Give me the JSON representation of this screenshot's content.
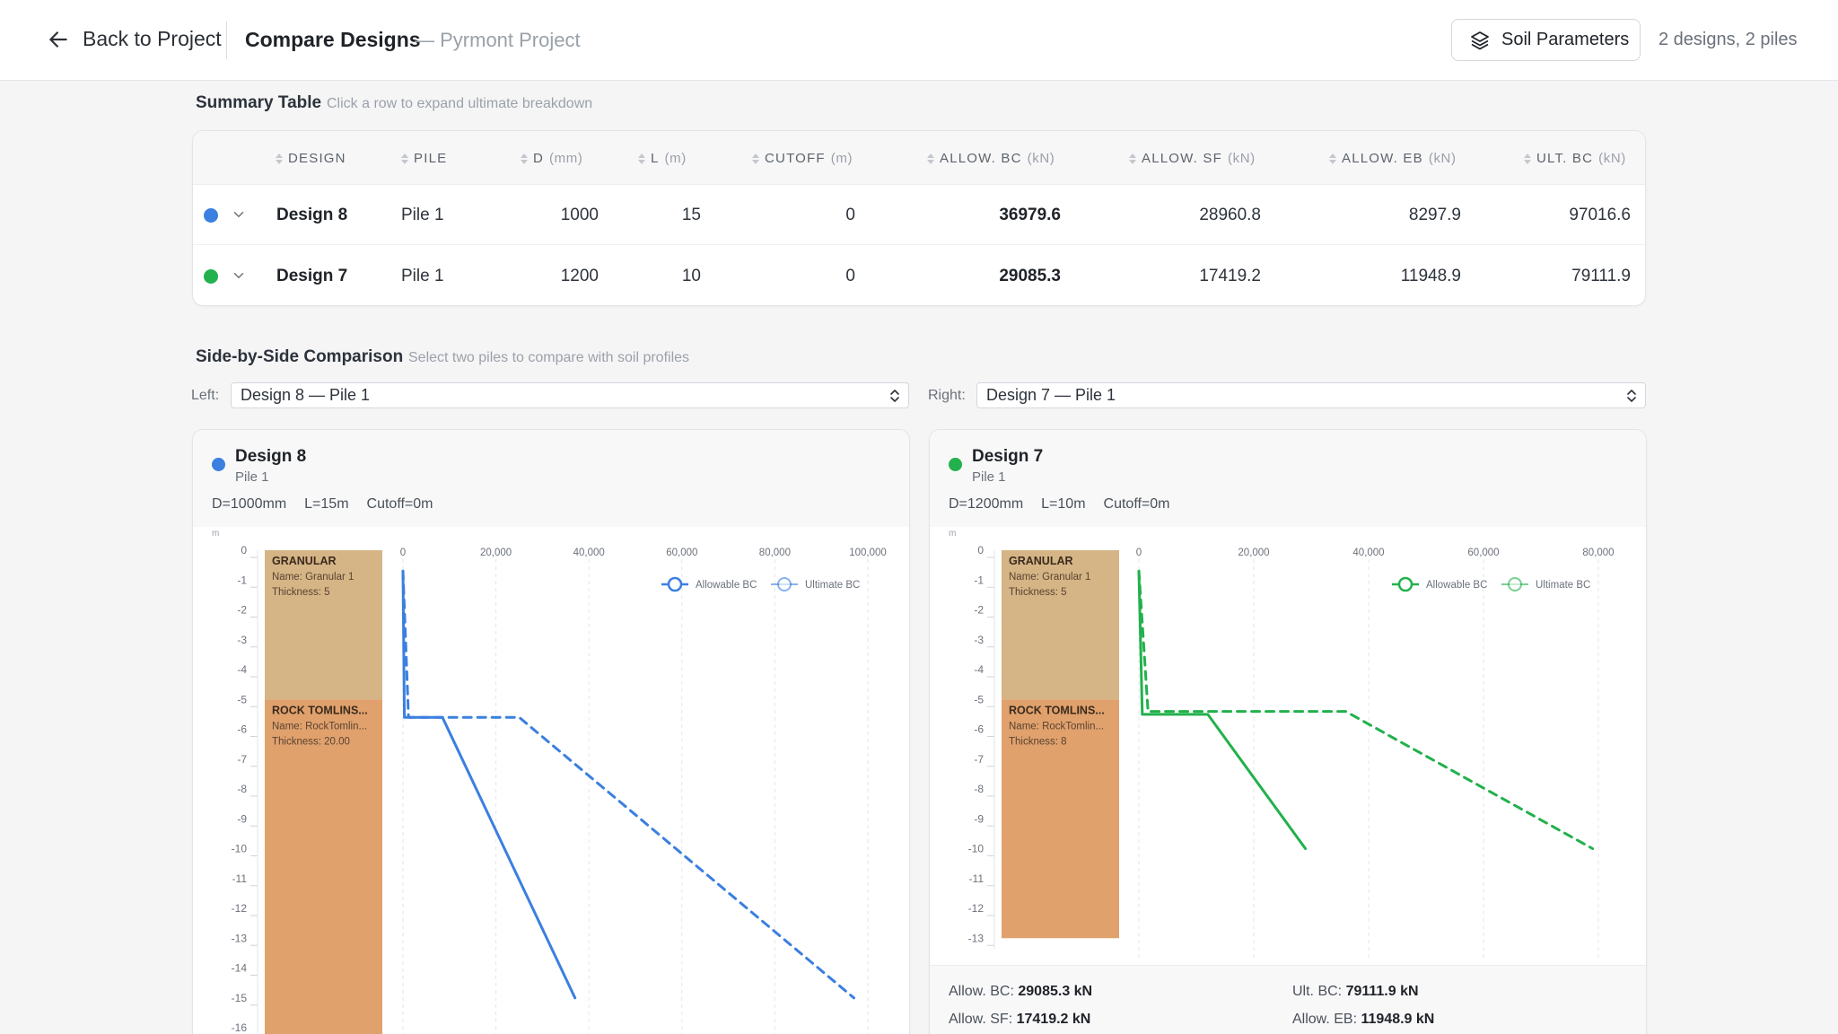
{
  "header": {
    "back_label": "Back to Project",
    "title": "Compare Designs",
    "subtitle": "— Pyrmont Project",
    "soil_button": "Soil Parameters",
    "counts": "2 designs, 2 piles"
  },
  "summary": {
    "title": "Summary Table",
    "hint": "Click a row to expand ultimate breakdown",
    "columns": [
      {
        "label": "DESIGN",
        "unit": ""
      },
      {
        "label": "PILE",
        "unit": ""
      },
      {
        "label": "D",
        "unit": "(mm)"
      },
      {
        "label": "L",
        "unit": "(m)"
      },
      {
        "label": "CUTOFF",
        "unit": "(m)"
      },
      {
        "label": "ALLOW. BC",
        "unit": "(kN)"
      },
      {
        "label": "ALLOW. SF",
        "unit": "(kN)"
      },
      {
        "label": "ALLOW. EB",
        "unit": "(kN)"
      },
      {
        "label": "ULT. BC",
        "unit": "(kN)"
      }
    ],
    "rows": [
      {
        "color": "#3b7fe0",
        "design": "Design 8",
        "pile": "Pile 1",
        "d": "1000",
        "l": "15",
        "cutoff": "0",
        "allow_bc": "36979.6",
        "allow_sf": "28960.8",
        "allow_eb": "8297.9",
        "ult_bc": "97016.6"
      },
      {
        "color": "#22b14c",
        "design": "Design 7",
        "pile": "Pile 1",
        "d": "1200",
        "l": "10",
        "cutoff": "0",
        "allow_bc": "29085.3",
        "allow_sf": "17419.2",
        "allow_eb": "11948.9",
        "ult_bc": "79111.9"
      }
    ]
  },
  "comparison": {
    "title": "Side-by-Side Comparison",
    "hint": "Select two piles to compare with soil profiles",
    "left_label": "Left:",
    "left_value": "Design 8 — Pile 1",
    "right_label": "Right:",
    "right_value": "Design 7 — Pile 1"
  },
  "cards": [
    {
      "name": "Design 8",
      "pile": "Pile 1",
      "color": "#3b7fe0",
      "params": [
        "D=1000mm",
        "L=15m",
        "Cutoff=0m"
      ],
      "footer": []
    },
    {
      "name": "Design 7",
      "pile": "Pile 1",
      "color": "#22b14c",
      "params": [
        "D=1200mm",
        "L=10m",
        "Cutoff=0m"
      ],
      "footer": [
        {
          "label": "Allow. BC:",
          "value": "29085.3 kN"
        },
        {
          "label": "Ult. BC:",
          "value": "79111.9 kN"
        },
        {
          "label": "Allow. SF:",
          "value": "17419.2 kN"
        },
        {
          "label": "Allow. EB:",
          "value": "11948.9 kN"
        }
      ]
    }
  ],
  "chart_data": [
    {
      "type": "line",
      "depth_unit": "m",
      "depth_ticks": [
        0,
        -1,
        -2,
        -3,
        -4,
        -5,
        -6,
        -7,
        -8,
        -9,
        -10,
        -11,
        -12,
        -13,
        -14,
        -15,
        -16
      ],
      "x_ticks": [
        "0",
        "20,000",
        "40,000",
        "60,000",
        "80,000",
        "100,000"
      ],
      "xlim": [
        0,
        100000
      ],
      "legend": [
        "Allowable BC",
        "Ultimate BC"
      ],
      "legend_position": "top-right",
      "layers": [
        {
          "title": "GRANULAR",
          "name": "Name: Granular 1",
          "thickness": "Thickness: 5",
          "top": 0,
          "bottom": -5,
          "color": "#d5b486"
        },
        {
          "title": "ROCK TOMLINS...",
          "name": "Name: RockTomlin...",
          "thickness": "Thickness: 20.00",
          "top": -5,
          "bottom": -16.5,
          "color": "#e0a16d"
        }
      ],
      "series": [
        {
          "name": "Allowable BC",
          "points": [
            [
              0,
              -0.7
            ],
            [
              300,
              -5.6
            ],
            [
              8500,
              -5.6
            ],
            [
              37000,
              -15
            ]
          ]
        },
        {
          "name": "Ultimate BC",
          "points": [
            [
              0,
              -0.7
            ],
            [
              1200,
              -5.6
            ],
            [
              25000,
              -5.6
            ],
            [
              97000,
              -15
            ]
          ]
        }
      ]
    },
    {
      "type": "line",
      "depth_unit": "m",
      "depth_ticks": [
        0,
        -1,
        -2,
        -3,
        -4,
        -5,
        -6,
        -7,
        -8,
        -9,
        -10,
        -11,
        -12,
        -13
      ],
      "x_ticks": [
        "0",
        "20,000",
        "40,000",
        "60,000",
        "80,000"
      ],
      "xlim": [
        0,
        80000
      ],
      "legend": [
        "Allowable BC",
        "Ultimate BC"
      ],
      "legend_position": "top-right",
      "layers": [
        {
          "title": "GRANULAR",
          "name": "Name: Granular 1",
          "thickness": "Thickness: 5",
          "top": 0,
          "bottom": -5,
          "color": "#d5b486"
        },
        {
          "title": "ROCK TOMLINS...",
          "name": "Name: RockTomlin...",
          "thickness": "Thickness: 8",
          "top": -5,
          "bottom": -13,
          "color": "#e0a16d"
        }
      ],
      "series": [
        {
          "name": "Allowable BC",
          "points": [
            [
              0,
              -0.7
            ],
            [
              600,
              -5.5
            ],
            [
              12000,
              -5.5
            ],
            [
              29000,
              -10
            ]
          ]
        },
        {
          "name": "Ultimate BC",
          "points": [
            [
              0,
              -0.7
            ],
            [
              1600,
              -5.4
            ],
            [
              36000,
              -5.4
            ],
            [
              79000,
              -10
            ]
          ]
        }
      ]
    }
  ]
}
